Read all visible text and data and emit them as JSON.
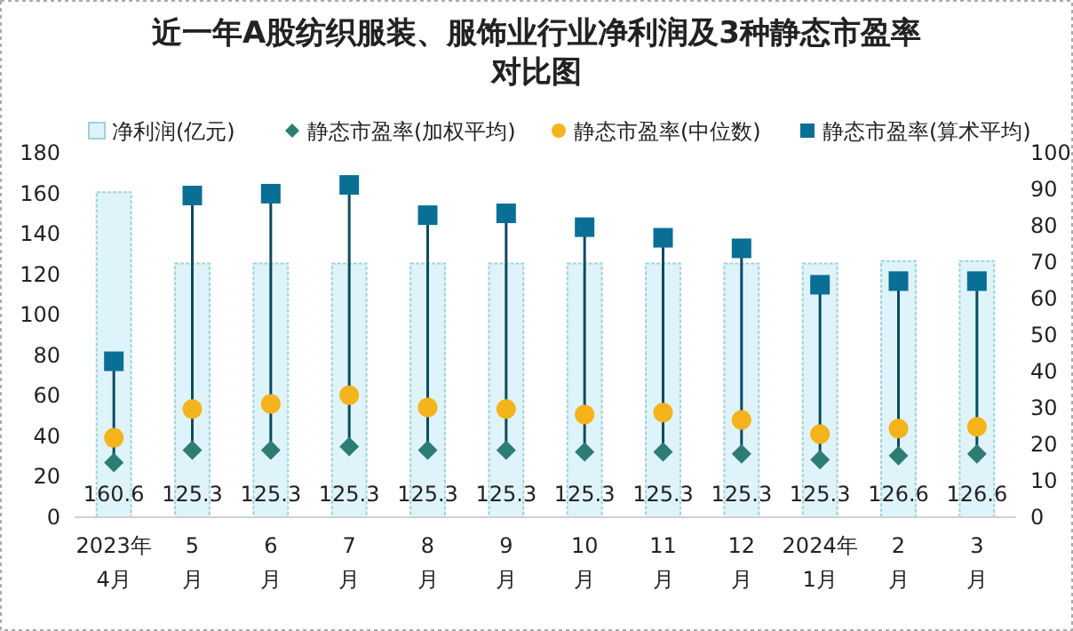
{
  "chart_data": {
    "type": "bar",
    "title": "近一年A股纺织服装、服饰业行业净利润及3种静态市盈率对比图",
    "categories": [
      "2023年\n4月",
      "5\n月",
      "6\n月",
      "7\n月",
      "8\n月",
      "9\n月",
      "10\n月",
      "11\n月",
      "12\n月",
      "2024年\n1月",
      "2\n月",
      "3\n月"
    ],
    "series": [
      {
        "name": "净利润(亿元)",
        "color": "#dff3fa",
        "values": [
          160.6,
          125.3,
          125.3,
          125.3,
          125.3,
          125.3,
          125.3,
          125.3,
          125.3,
          125.3,
          126.6,
          126.6
        ],
        "value_labels": [
          "160.6",
          "125.3",
          "125.3",
          "125.3",
          "125.3",
          "125.3",
          "125.3",
          "125.3",
          "125.3",
          "125.3",
          "126.6",
          "126.6"
        ]
      },
      {
        "name": "静态市盈率(加权平均)",
        "type": "scatter",
        "marker": "diamond",
        "axis": "y2",
        "color": "#2e7d74",
        "values": [
          15.0,
          18.4,
          18.4,
          19.4,
          18.4,
          18.4,
          17.9,
          17.9,
          17.4,
          15.8,
          16.9,
          17.4
        ]
      },
      {
        "name": "静态市盈率(中位数)",
        "type": "scatter",
        "marker": "circle",
        "axis": "y2",
        "color": "#f5b31c",
        "values": [
          21.8,
          29.7,
          31.1,
          33.5,
          30.1,
          29.7,
          28.2,
          28.7,
          26.7,
          22.8,
          24.3,
          24.8
        ]
      },
      {
        "name": "静态市盈率(算术平均)",
        "type": "scatter",
        "marker": "square",
        "axis": "y2",
        "color": "#0a6f95",
        "values": [
          42.8,
          88.3,
          88.8,
          91.2,
          82.9,
          83.4,
          79.6,
          76.7,
          73.8,
          63.8,
          64.8,
          64.8
        ]
      }
    ],
    "ylim": [
      0,
      180
    ],
    "yticks": [
      0,
      20,
      40,
      60,
      80,
      100,
      120,
      140,
      160,
      180
    ],
    "y2lim": [
      0,
      100
    ],
    "y2ticks": [
      0,
      10,
      20,
      30,
      40,
      50,
      60,
      70,
      80,
      90,
      100
    ],
    "legend": "top"
  }
}
